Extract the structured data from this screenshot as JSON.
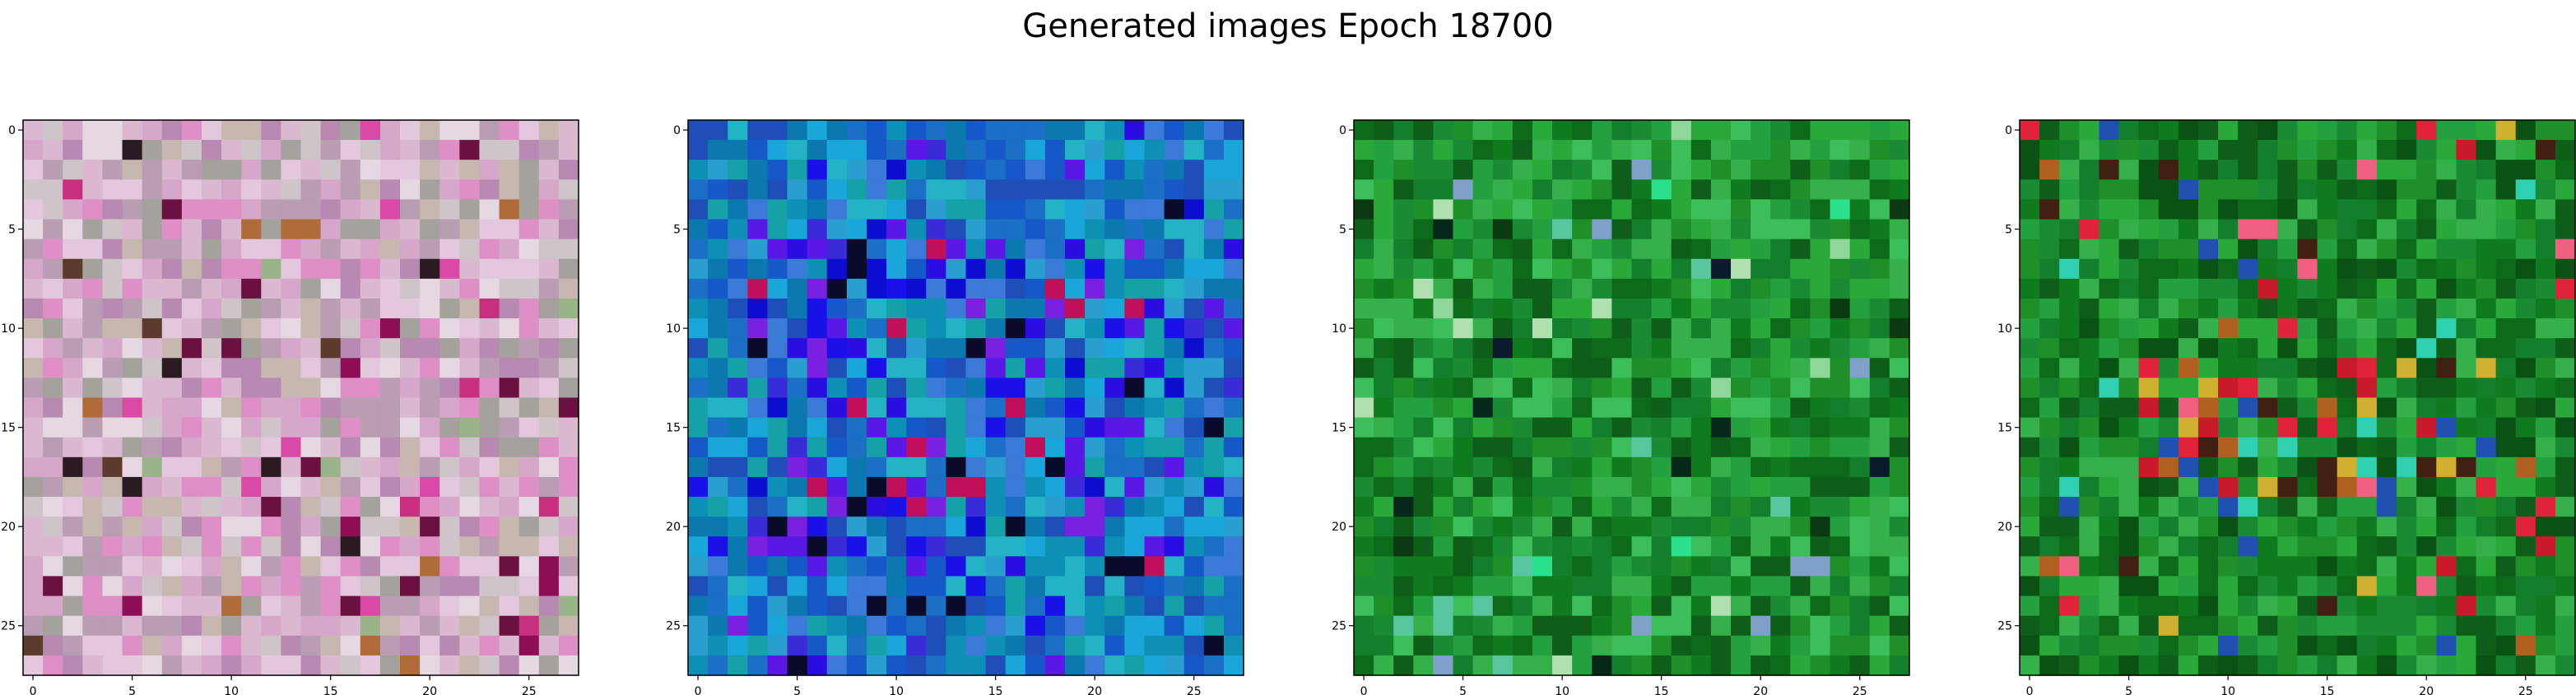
{
  "figure": {
    "title": "Generated images Epoch 18700"
  },
  "chart_data": [
    {
      "type": "heatmap",
      "title": "",
      "xlabel": "",
      "ylabel": "",
      "shape": [
        28,
        28
      ],
      "xlim": [
        -0.5,
        27.5
      ],
      "ylim": [
        27.5,
        -0.5
      ],
      "xticks": [
        0,
        5,
        10,
        15,
        20,
        25
      ],
      "yticks": [
        0,
        5,
        10,
        15,
        20,
        25
      ],
      "grid": false,
      "palette": [
        "#e3c7dc",
        "#d9b8d0",
        "#c8b7b0",
        "#d7a6cb",
        "#b99db2",
        "#e6d8e3",
        "#cfc4c9",
        "#b88ab2",
        "#a5a19c",
        "#de8fc5"
      ],
      "accents": [
        "#6b1141",
        "#2a1b22",
        "#8c0f55",
        "#b06b3b",
        "#d94aa6",
        "#5b3b2b",
        "#c92f7f",
        "#9bb38a"
      ]
    },
    {
      "type": "heatmap",
      "title": "",
      "xlabel": "",
      "ylabel": "",
      "shape": [
        28,
        28
      ],
      "xlim": [
        -0.5,
        27.5
      ],
      "ylim": [
        27.5,
        -0.5
      ],
      "xticks": [
        0,
        5,
        10,
        15,
        20,
        25
      ],
      "yticks": [
        0,
        5,
        10,
        15,
        20,
        25
      ],
      "grid": false,
      "palette": [
        "#1b6fc4",
        "#0e8fb5",
        "#2a9fcf",
        "#1758c9",
        "#16a0a8",
        "#3b7ad6",
        "#0b78b0",
        "#23b3c4",
        "#1e4fb8",
        "#1aa6d8"
      ],
      "accents": [
        "#1a10e8",
        "#2a0de0",
        "#5a18e6",
        "#0d0dd0",
        "#3a2bd8",
        "#7a20e0",
        "#0a0a2a",
        "#c0105a"
      ]
    },
    {
      "type": "heatmap",
      "title": "",
      "xlabel": "",
      "ylabel": "",
      "shape": [
        28,
        28
      ],
      "xlim": [
        -0.5,
        27.5
      ],
      "ylim": [
        27.5,
        -0.5
      ],
      "xticks": [
        0,
        5,
        10,
        15,
        20,
        25
      ],
      "yticks": [
        0,
        5,
        10,
        15,
        20,
        25
      ],
      "grid": false,
      "palette": [
        "#1f8f2a",
        "#0f7a1e",
        "#2aa83a",
        "#137f2c",
        "#35b04a",
        "#0c6a1a",
        "#24a040",
        "#1a8a35",
        "#3cbf5a",
        "#0e5e1a"
      ],
      "accents": [
        "#06281a",
        "#0a1a2a",
        "#8fd69a",
        "#2ae08a",
        "#5ac6a0",
        "#7fa0c8",
        "#0c3a10",
        "#b0e0b0"
      ]
    },
    {
      "type": "heatmap",
      "title": "",
      "xlabel": "",
      "ylabel": "",
      "shape": [
        28,
        28
      ],
      "xlim": [
        -0.5,
        27.5
      ],
      "ylim": [
        27.5,
        -0.5
      ],
      "xticks": [
        0,
        5,
        10,
        15,
        20,
        25
      ],
      "yticks": [
        0,
        5,
        10,
        15,
        20,
        25
      ],
      "grid": false,
      "palette": [
        "#0f7a1e",
        "#1f8f2a",
        "#0c6a1a",
        "#2aa83a",
        "#137f2c",
        "#0e5e1a",
        "#24a040",
        "#1a8a35",
        "#35b04a",
        "#095214"
      ],
      "accents": [
        "#e0223a",
        "#c81a2a",
        "#f06080",
        "#d0b030",
        "#b06020",
        "#2050b0",
        "#30d0b0",
        "#402010"
      ]
    }
  ]
}
